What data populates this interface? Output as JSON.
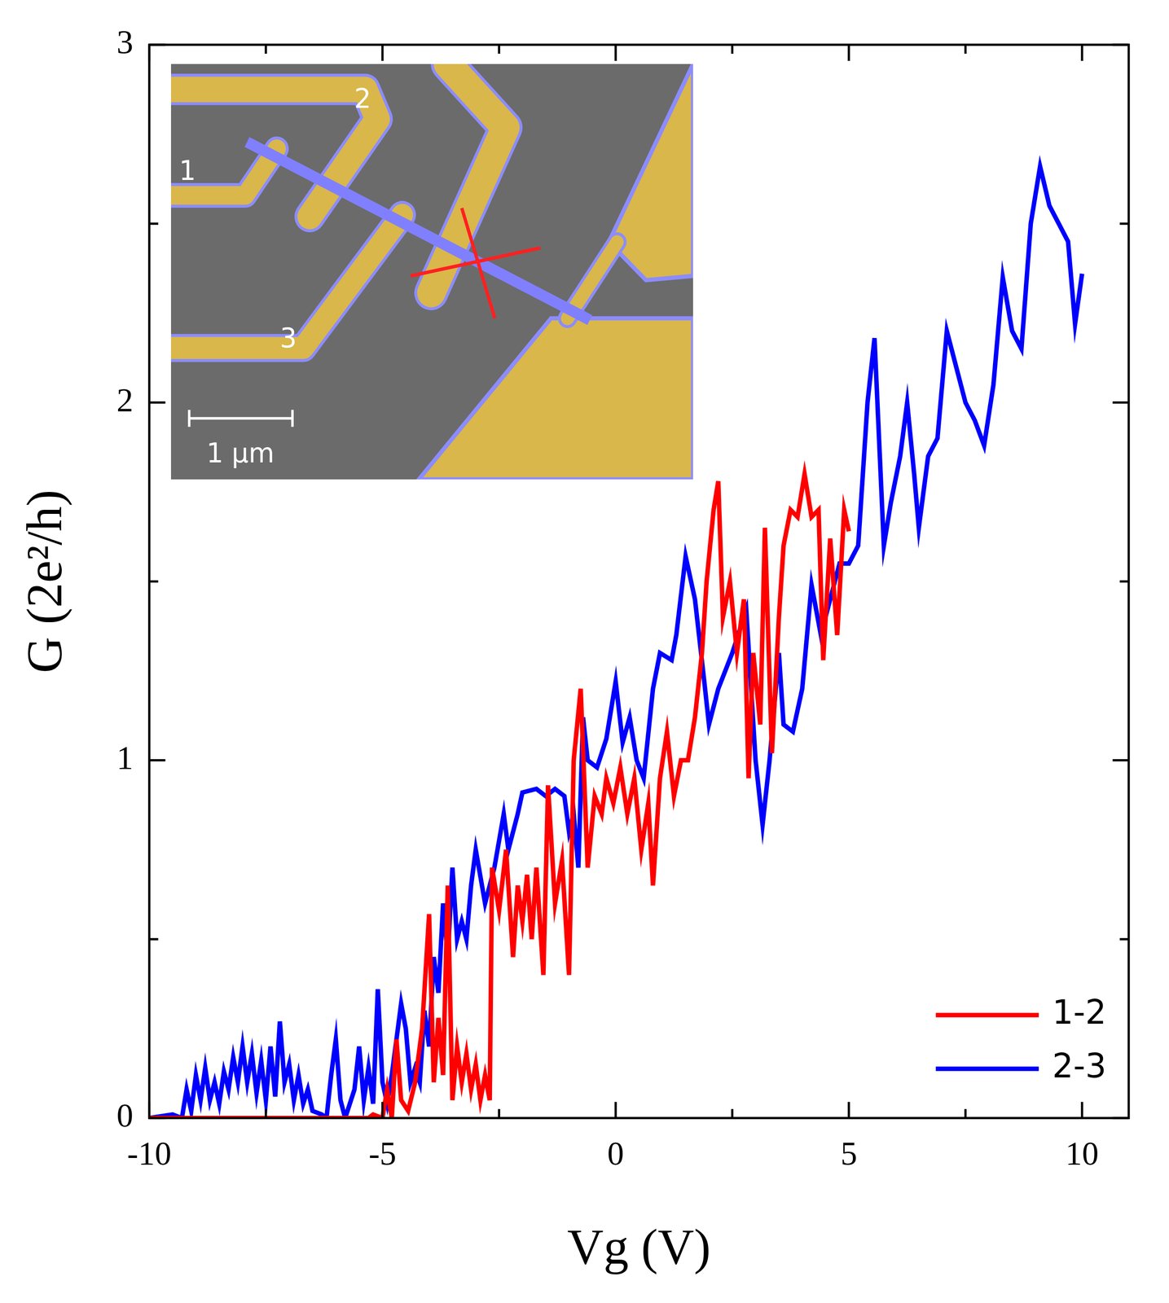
{
  "chart_data": {
    "type": "line",
    "xlabel": "Vg (V)",
    "ylabel": "G (2e²/h)",
    "xlim": [
      -10,
      11
    ],
    "xticks": [
      -10,
      -5,
      0,
      5,
      10
    ],
    "ylim": [
      0,
      3
    ],
    "yticks": [
      0,
      1,
      2,
      3
    ],
    "grid": false,
    "legend": "lower right",
    "annotations": {
      "inset_labels": [
        "1",
        "2",
        "3"
      ],
      "inset_scale_bar": "1 µm"
    },
    "series": [
      {
        "name": "1-2",
        "color": "#ff0000",
        "marker": "none",
        "line_style": "solid",
        "x": [
          -10,
          -5.3,
          -5.2,
          -5.0,
          -4.9,
          -4.8,
          -4.7,
          -4.6,
          -4.45,
          -4.3,
          -4.15,
          -4.0,
          -3.9,
          -3.8,
          -3.7,
          -3.6,
          -3.5,
          -3.4,
          -3.3,
          -3.2,
          -3.1,
          -3.0,
          -2.9,
          -2.8,
          -2.7,
          -2.65,
          -2.5,
          -2.35,
          -2.2,
          -2.1,
          -2.0,
          -1.9,
          -1.8,
          -1.7,
          -1.55,
          -1.45,
          -1.3,
          -1.15,
          -1.0,
          -0.9,
          -0.75,
          -0.6,
          -0.45,
          -0.3,
          -0.2,
          -0.05,
          0.1,
          0.25,
          0.4,
          0.55,
          0.7,
          0.8,
          0.95,
          1.1,
          1.25,
          1.4,
          1.55,
          1.7,
          1.85,
          1.95,
          2.1,
          2.2,
          2.3,
          2.45,
          2.6,
          2.75,
          2.85,
          2.95,
          3.1,
          3.2,
          3.35,
          3.5,
          3.6,
          3.75,
          3.9,
          4.05,
          4.2,
          4.35,
          4.45,
          4.6,
          4.75,
          4.9,
          5.0
        ],
        "values": [
          0,
          0,
          0.01,
          0,
          0.08,
          0,
          0.22,
          0.05,
          0.02,
          0.1,
          0.25,
          0.57,
          0.1,
          0.28,
          0.12,
          0.65,
          0.05,
          0.2,
          0.1,
          0.18,
          0.08,
          0.15,
          0.05,
          0.12,
          0.05,
          0.7,
          0.58,
          0.75,
          0.45,
          0.65,
          0.55,
          0.68,
          0.5,
          0.7,
          0.4,
          0.93,
          0.6,
          0.72,
          0.4,
          1.0,
          1.2,
          0.7,
          0.9,
          0.85,
          0.95,
          0.88,
          0.98,
          0.85,
          0.95,
          0.75,
          0.88,
          0.65,
          0.95,
          1.08,
          0.9,
          1.0,
          1.0,
          1.12,
          1.3,
          1.5,
          1.7,
          1.78,
          1.4,
          1.5,
          1.3,
          1.45,
          0.95,
          1.3,
          1.1,
          1.65,
          1.02,
          1.4,
          1.6,
          1.7,
          1.68,
          1.8,
          1.68,
          1.7,
          1.28,
          1.62,
          1.35,
          1.7,
          1.64
        ]
      },
      {
        "name": "2-3",
        "color": "#0000ff",
        "marker": "none",
        "line_style": "solid",
        "x": [
          -10,
          -9.5,
          -9.3,
          -9.2,
          -9.1,
          -9.0,
          -8.9,
          -8.8,
          -8.7,
          -8.6,
          -8.5,
          -8.4,
          -8.3,
          -8.2,
          -8.1,
          -8.0,
          -7.9,
          -7.8,
          -7.7,
          -7.6,
          -7.5,
          -7.4,
          -7.3,
          -7.2,
          -7.1,
          -7.0,
          -6.9,
          -6.8,
          -6.7,
          -6.6,
          -6.5,
          -6.3,
          -6.2,
          -6.1,
          -6.0,
          -5.9,
          -5.8,
          -5.6,
          -5.5,
          -5.4,
          -5.3,
          -5.2,
          -5.1,
          -5.0,
          -4.9,
          -4.8,
          -4.6,
          -4.5,
          -4.4,
          -4.3,
          -4.2,
          -4.1,
          -4.0,
          -3.9,
          -3.8,
          -3.7,
          -3.6,
          -3.5,
          -3.4,
          -3.3,
          -3.2,
          -3.1,
          -3.0,
          -2.8,
          -2.6,
          -2.4,
          -2.3,
          -2.1,
          -2.0,
          -1.7,
          -1.5,
          -1.3,
          -1.1,
          -1.0,
          -0.9,
          -0.8,
          -0.7,
          -0.6,
          -0.4,
          -0.2,
          0.0,
          0.15,
          0.3,
          0.45,
          0.6,
          0.8,
          0.95,
          1.2,
          1.3,
          1.5,
          1.7,
          1.9,
          2.0,
          2.2,
          2.5,
          2.8,
          3.0,
          3.15,
          3.3,
          3.5,
          3.6,
          3.8,
          4.0,
          4.2,
          4.4,
          4.6,
          4.8,
          5.0,
          5.2,
          5.4,
          5.55,
          5.75,
          5.9,
          6.1,
          6.25,
          6.4,
          6.5,
          6.7,
          6.9,
          7.1,
          7.3,
          7.5,
          7.7,
          7.9,
          8.1,
          8.3,
          8.5,
          8.7,
          8.9,
          9.1,
          9.3,
          9.5,
          9.7,
          9.85,
          10.0
        ],
        "values": [
          0,
          0.01,
          0,
          0.08,
          0.02,
          0.12,
          0.05,
          0.14,
          0.05,
          0.1,
          0.04,
          0.13,
          0.08,
          0.17,
          0.1,
          0.2,
          0.1,
          0.18,
          0.07,
          0.16,
          0.05,
          0.2,
          0.06,
          0.27,
          0.1,
          0.15,
          0.05,
          0.12,
          0.04,
          0.08,
          0.02,
          0.01,
          0,
          0.12,
          0.22,
          0.05,
          0,
          0.08,
          0.2,
          0.05,
          0.14,
          0.04,
          0.36,
          0.1,
          0.04,
          0.12,
          0.32,
          0.25,
          0.1,
          0.14,
          0.1,
          0.3,
          0.2,
          0.45,
          0.35,
          0.6,
          0.45,
          0.7,
          0.5,
          0.55,
          0.5,
          0.65,
          0.75,
          0.6,
          0.7,
          0.85,
          0.75,
          0.85,
          0.91,
          0.92,
          0.9,
          0.92,
          0.9,
          0.8,
          0.85,
          0.7,
          1.12,
          1.0,
          0.98,
          1.06,
          1.22,
          1.05,
          1.12,
          1.0,
          0.95,
          1.2,
          1.3,
          1.28,
          1.35,
          1.57,
          1.45,
          1.22,
          1.1,
          1.2,
          1.3,
          1.42,
          1.0,
          0.82,
          1.0,
          1.3,
          1.1,
          1.08,
          1.2,
          1.49,
          1.35,
          1.45,
          1.55,
          1.55,
          1.6,
          2.0,
          2.18,
          1.6,
          1.72,
          1.85,
          2.0,
          1.8,
          1.65,
          1.85,
          1.9,
          2.2,
          2.1,
          2.0,
          1.95,
          1.88,
          2.05,
          2.35,
          2.2,
          2.15,
          2.5,
          2.66,
          2.55,
          2.5,
          2.45,
          2.22,
          2.36
        ]
      }
    ]
  }
}
